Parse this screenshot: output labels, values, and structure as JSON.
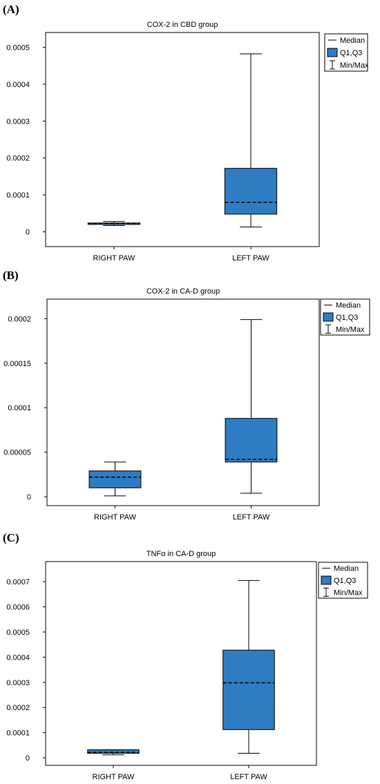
{
  "colors": {
    "box_fill": "#2e7cc2",
    "box_stroke": "#000000",
    "frame": "#000000",
    "median_line": "#000000"
  },
  "chart_data": [
    {
      "panel": "(A)",
      "type": "box",
      "title": "COX-2 in CBD group",
      "categories": [
        "RIGHT PAW",
        "LEFT PAW"
      ],
      "y_ticks": [
        "0",
        "0.0001",
        "0.0002",
        "0.0003",
        "0.0004",
        "0.0005"
      ],
      "ylim": [
        -4e-05,
        0.00054
      ],
      "legend": {
        "placement": "top-right",
        "items": [
          "Median",
          "Q1,Q3",
          "Min/Max"
        ]
      },
      "boxes": [
        {
          "min": 1.7e-05,
          "q1": 2e-05,
          "median": 2.3e-05,
          "q3": 2.4e-05,
          "max": 2.8e-05
        },
        {
          "min": 1.3e-05,
          "q1": 4.8e-05,
          "median": 8e-05,
          "q3": 0.000172,
          "max": 0.000482
        }
      ]
    },
    {
      "panel": "(B)",
      "type": "box",
      "title": "COX-2 in CA-D group",
      "categories": [
        "RIGHT PAW",
        "LEFT PAW"
      ],
      "y_ticks": [
        "0",
        "0.00005",
        "0.0001",
        "0.00015",
        "0.0002"
      ],
      "ylim": [
        -1e-05,
        0.000222
      ],
      "legend": {
        "placement": "top-right",
        "items": [
          "Median",
          "Q1,Q3",
          "Min/Max"
        ]
      },
      "boxes": [
        {
          "min": 1e-06,
          "q1": 1e-05,
          "median": 2.2e-05,
          "q3": 2.9e-05,
          "max": 3.9e-05
        },
        {
          "min": 4e-06,
          "q1": 3.9e-05,
          "median": 4.2e-05,
          "q3": 8.8e-05,
          "max": 0.000199
        }
      ]
    },
    {
      "panel": "(C)",
      "type": "box",
      "title": "TNFα in CA-D group",
      "categories": [
        "RIGHT PAW",
        "LEFT PAW"
      ],
      "y_ticks": [
        "0",
        "0.0001",
        "0.0002",
        "0.0003",
        "0.0004",
        "0.0005",
        "0.0006",
        "0.0007"
      ],
      "ylim": [
        -3e-05,
        0.00078
      ],
      "legend": {
        "placement": "top-right",
        "items": [
          "Median",
          "Q1,Q3",
          "Min/Max"
        ]
      },
      "boxes": [
        {
          "min": 1.2e-05,
          "q1": 1.8e-05,
          "median": 2.2e-05,
          "q3": 3.2e-05,
          "max": 3.2e-05
        },
        {
          "min": 1.8e-05,
          "q1": 0.000112,
          "median": 0.000298,
          "q3": 0.000428,
          "max": 0.000705
        }
      ]
    }
  ]
}
